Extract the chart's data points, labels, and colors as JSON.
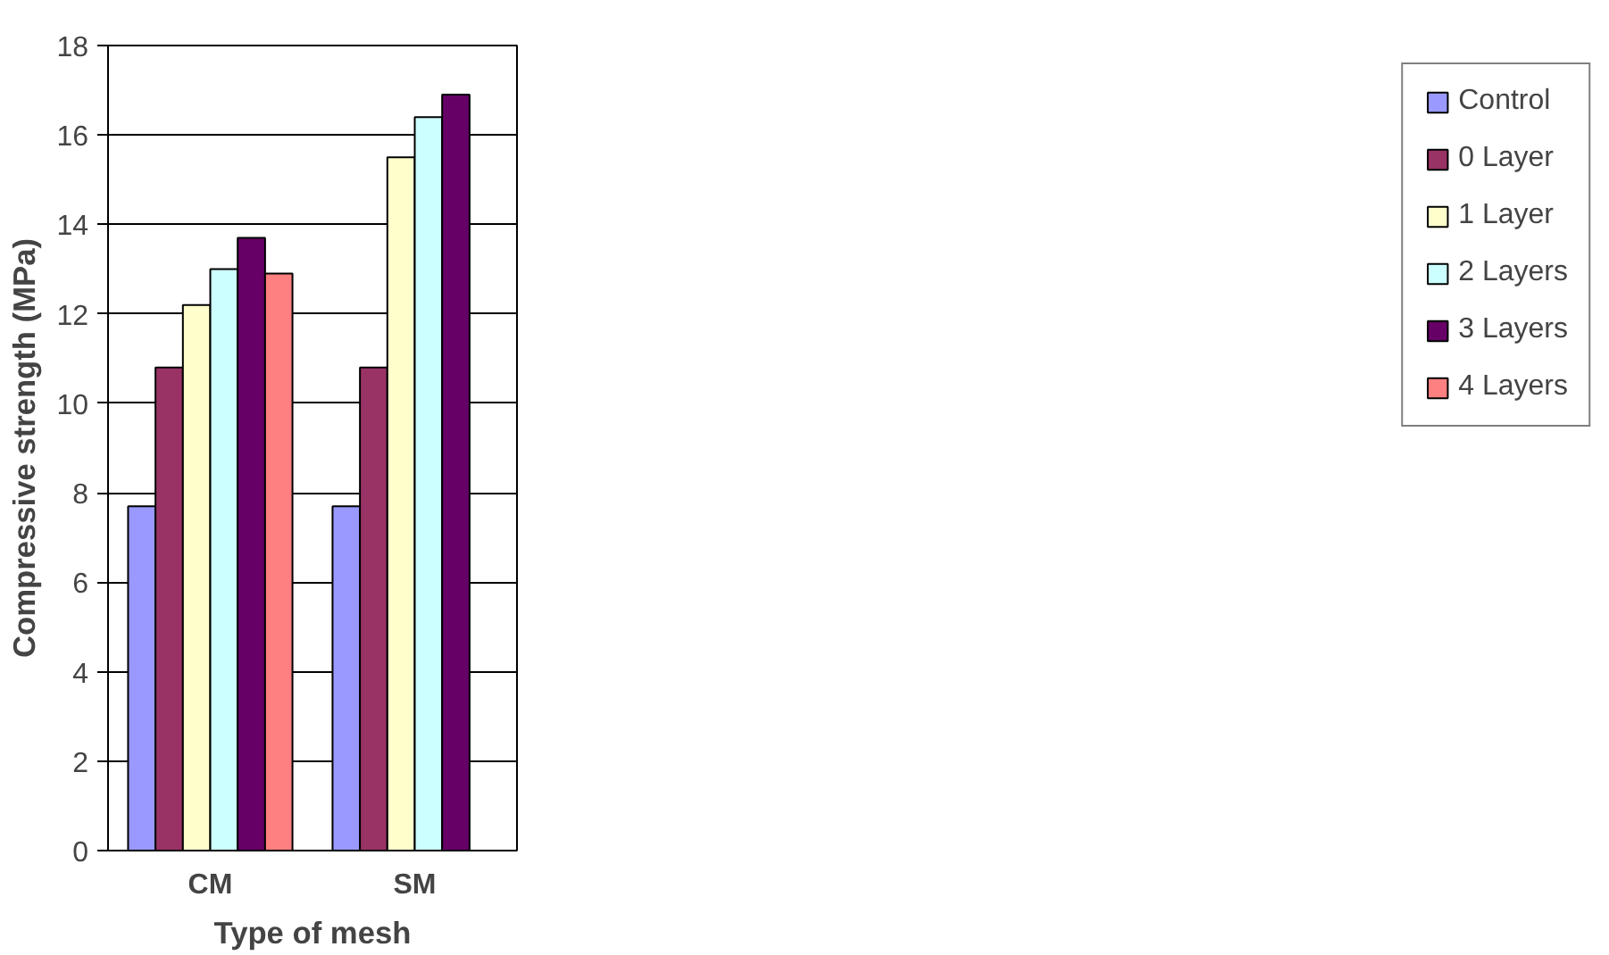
{
  "chart_data": {
    "type": "bar",
    "xlabel": "Type of mesh",
    "ylabel": "Compressive strength (MPa)",
    "categories": [
      "CM",
      "SM"
    ],
    "series": [
      {
        "name": "Control",
        "color": "#9999ff",
        "values": [
          7.7,
          7.7
        ]
      },
      {
        "name": "0 Layer",
        "color": "#993366",
        "values": [
          10.8,
          10.8
        ]
      },
      {
        "name": "1 Layer",
        "color": "#ffffcc",
        "values": [
          12.2,
          15.5
        ]
      },
      {
        "name": "2 Layers",
        "color": "#ccffff",
        "values": [
          13.0,
          16.4
        ]
      },
      {
        "name": "3 Layers",
        "color": "#660066",
        "values": [
          13.7,
          16.9
        ]
      },
      {
        "name": "4 Layers",
        "color": "#ff8080",
        "values": [
          12.9,
          null
        ]
      }
    ],
    "ylim": [
      0,
      18
    ],
    "yticks": [
      0,
      2,
      4,
      6,
      8,
      10,
      12,
      14,
      16,
      18
    ],
    "grid": "y",
    "legend": "right"
  }
}
